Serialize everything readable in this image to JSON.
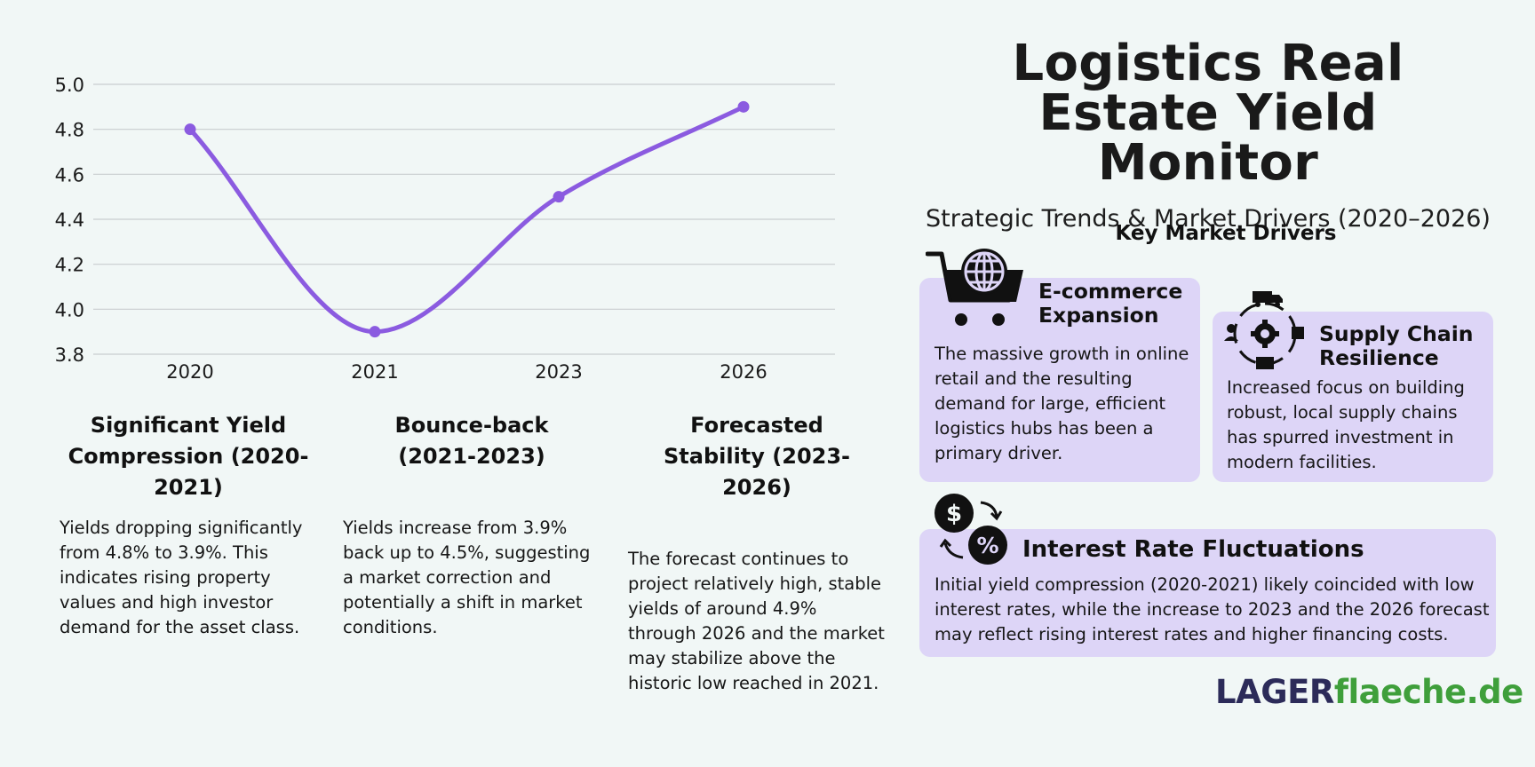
{
  "title": "Logistics Real Estate Yield Monitor",
  "subtitle": "Strategic Trends & Market Drivers (2020–2026)",
  "chart_data": {
    "type": "line",
    "categories": [
      "2020",
      "2021",
      "2023",
      "2026"
    ],
    "series": [
      {
        "values": [
          4.8,
          3.9,
          4.5,
          4.9
        ],
        "color": "#8b5be0"
      }
    ],
    "ylim": [
      3.8,
      5.0
    ],
    "yticks": [
      "3.8",
      "4.0",
      "4.2",
      "4.4",
      "4.6",
      "4.8",
      "5.0"
    ],
    "grid": true
  },
  "phases": [
    {
      "heading": "Significant Yield Compression (2020-2021)",
      "text": "Yields dropping significantly from 4.8% to 3.9%. This indicates rising property values and high investor demand for the asset class."
    },
    {
      "heading": "Bounce-back (2021-2023)",
      "text": "Yields increase from 3.9% back up to 4.5%, suggesting a market correction and potentially a shift in market conditions."
    },
    {
      "heading": "Forecasted Stability (2023-2026)",
      "text": "The forecast continues to project relatively high, stable yields of around 4.9% through 2026 and the market may stabilize above the historic low reached in 2021."
    }
  ],
  "drivers": {
    "title": "Key Market Drivers",
    "ecommerce": {
      "title": "E-commerce Expansion",
      "text": "The massive growth in online retail and the resulting demand for large, efficient logistics hubs has been a primary driver.",
      "icon": "shopping-cart-globe-icon"
    },
    "supply_chain": {
      "title": "Supply Chain Resilience",
      "text": "Increased focus on building robust, local supply chains has spurred investment in modern facilities.",
      "icon": "supply-chain-cycle-icon"
    },
    "interest": {
      "title": "Interest Rate Fluctuations",
      "text": "Initial yield compression (2020-2021) likely coincided with low interest rates, while the increase to 2023 and the 2026 forecast may reflect rising interest rates and higher financing costs.",
      "icon": "dollar-percent-exchange-icon"
    }
  },
  "logo": {
    "part1": "LAGER",
    "part2": "flaeche.de"
  },
  "colors": {
    "background": "#f1f7f6",
    "card": "#ddd5f7",
    "line": "#8b5be0",
    "logo_dark": "#2c2b59",
    "logo_green": "#3f9f3b"
  }
}
